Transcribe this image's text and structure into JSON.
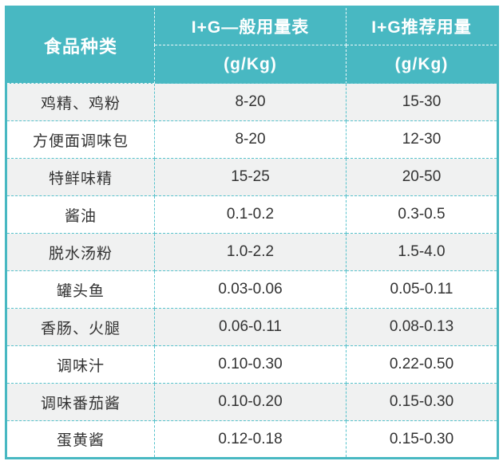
{
  "chart_data": {
    "type": "table",
    "columns": [
      {
        "label": "食品种类",
        "sublabel": ""
      },
      {
        "label": "I+G—般用量表",
        "sublabel": "(g/Kg)"
      },
      {
        "label": "I+G推荐用量",
        "sublabel": "(g/Kg)"
      }
    ],
    "rows": [
      {
        "food": "鸡精、鸡粉",
        "general": "8-20",
        "recommended": "15-30"
      },
      {
        "food": "方便面调味包",
        "general": "8-20",
        "recommended": "12-30"
      },
      {
        "food": "特鲜味精",
        "general": "15-25",
        "recommended": "20-50"
      },
      {
        "food": "酱油",
        "general": "0.1-0.2",
        "recommended": "0.3-0.5"
      },
      {
        "food": "脱水汤粉",
        "general": "1.0-2.2",
        "recommended": "1.5-4.0"
      },
      {
        "food": "罐头鱼",
        "general": "0.03-0.06",
        "recommended": "0.05-0.11"
      },
      {
        "food": "香肠、火腿",
        "general": "0.06-0.11",
        "recommended": "0.08-0.13"
      },
      {
        "food": "调味汁",
        "general": "0.10-0.30",
        "recommended": "0.22-0.50"
      },
      {
        "food": "调味番茄酱",
        "general": "0.10-0.20",
        "recommended": "0.15-0.30"
      },
      {
        "food": "蛋黄酱",
        "general": "0.12-0.18",
        "recommended": "0.15-0.30"
      }
    ],
    "layout": {
      "grid": "dashed",
      "header_rows": 2,
      "alternating_rows": true
    },
    "colors": {
      "header_bg": "#48b8c2",
      "header_text": "#ffffff",
      "outer_border": "#48b8c2",
      "dashed_grid": "#57c2cc",
      "header_dashed_grid": "#ffffff",
      "row_alt_bg": "#f0f1f1",
      "row_bg": "#ffffff",
      "body_text": "#333333",
      "page_bg": "#ffffff"
    }
  }
}
